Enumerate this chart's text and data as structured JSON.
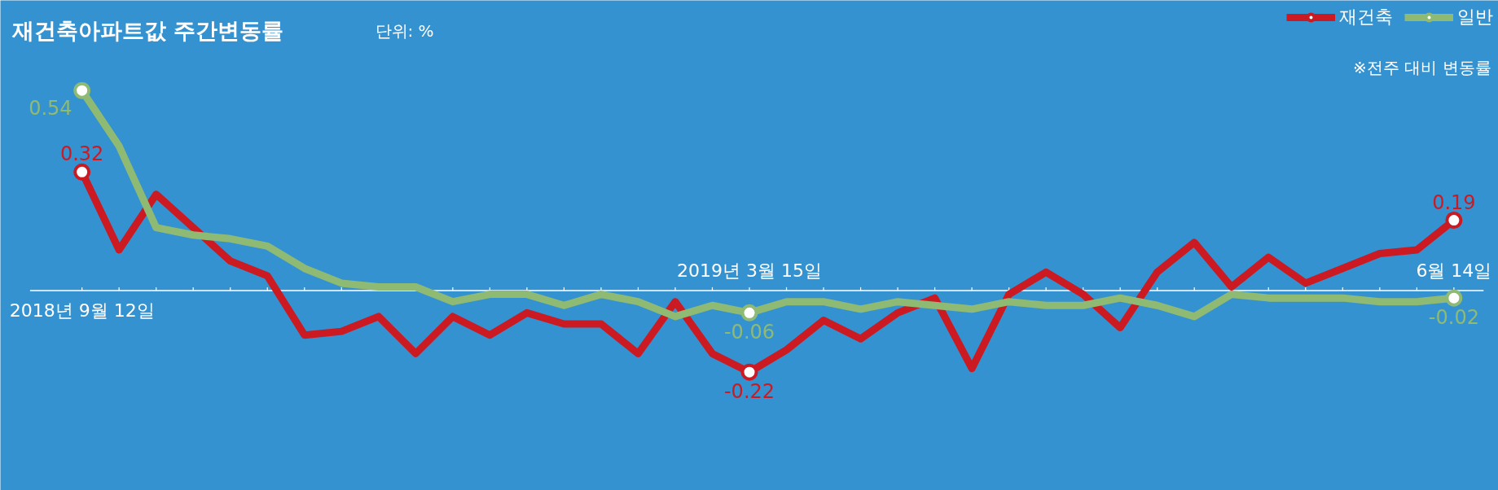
{
  "chart_data": {
    "type": "line",
    "title": "재건축아파트값 주간변동률",
    "subtitle": "단위: %",
    "annotations": [
      "※전주 대비 변동률"
    ],
    "categories": [
      "2018년 9월 12일",
      null,
      null,
      null,
      null,
      null,
      null,
      null,
      null,
      null,
      null,
      null,
      null,
      null,
      null,
      null,
      null,
      null,
      "2019년 3월 15일",
      null,
      null,
      null,
      null,
      null,
      null,
      null,
      null,
      null,
      null,
      null,
      null,
      null,
      null,
      null,
      null,
      null,
      null,
      "6월 14일"
    ],
    "series": [
      {
        "name": "재건축",
        "color": "#cc1a22",
        "values": [
          0.32,
          0.11,
          0.26,
          0.17,
          0.08,
          0.04,
          -0.12,
          -0.11,
          -0.07,
          -0.17,
          -0.07,
          -0.12,
          -0.06,
          -0.09,
          -0.09,
          -0.17,
          -0.03,
          -0.17,
          -0.22,
          -0.16,
          -0.08,
          -0.13,
          -0.06,
          -0.02,
          -0.21,
          -0.01,
          0.05,
          -0.01,
          -0.1,
          0.05,
          0.13,
          0.01,
          0.09,
          0.02,
          0.06,
          0.1,
          0.11,
          0.19
        ],
        "value_labels": [
          "0.32",
          null,
          null,
          null,
          null,
          null,
          null,
          null,
          null,
          null,
          null,
          null,
          null,
          null,
          null,
          null,
          null,
          null,
          "-0.22",
          null,
          null,
          null,
          null,
          null,
          null,
          null,
          null,
          null,
          null,
          null,
          null,
          null,
          null,
          null,
          null,
          null,
          null,
          "0.19"
        ]
      },
      {
        "name": "일반",
        "color": "#8fba74",
        "values": [
          0.54,
          0.39,
          0.17,
          0.15,
          0.14,
          0.12,
          0.06,
          0.02,
          0.01,
          0.01,
          -0.03,
          -0.01,
          -0.01,
          -0.04,
          -0.01,
          -0.03,
          -0.07,
          -0.04,
          -0.06,
          -0.03,
          -0.03,
          -0.05,
          -0.03,
          -0.04,
          -0.05,
          -0.03,
          -0.04,
          -0.04,
          -0.02,
          -0.04,
          -0.07,
          -0.01,
          -0.02,
          -0.02,
          -0.02,
          -0.03,
          -0.03,
          -0.02
        ],
        "value_labels": [
          "0.54",
          null,
          null,
          null,
          null,
          null,
          null,
          null,
          null,
          null,
          null,
          null,
          null,
          null,
          null,
          null,
          null,
          null,
          "-0.06",
          null,
          null,
          null,
          null,
          null,
          null,
          null,
          null,
          null,
          null,
          null,
          null,
          null,
          null,
          null,
          null,
          null,
          null,
          "-0.02"
        ]
      }
    ],
    "legend": "top right",
    "line_style": "solid",
    "grid": false
  }
}
